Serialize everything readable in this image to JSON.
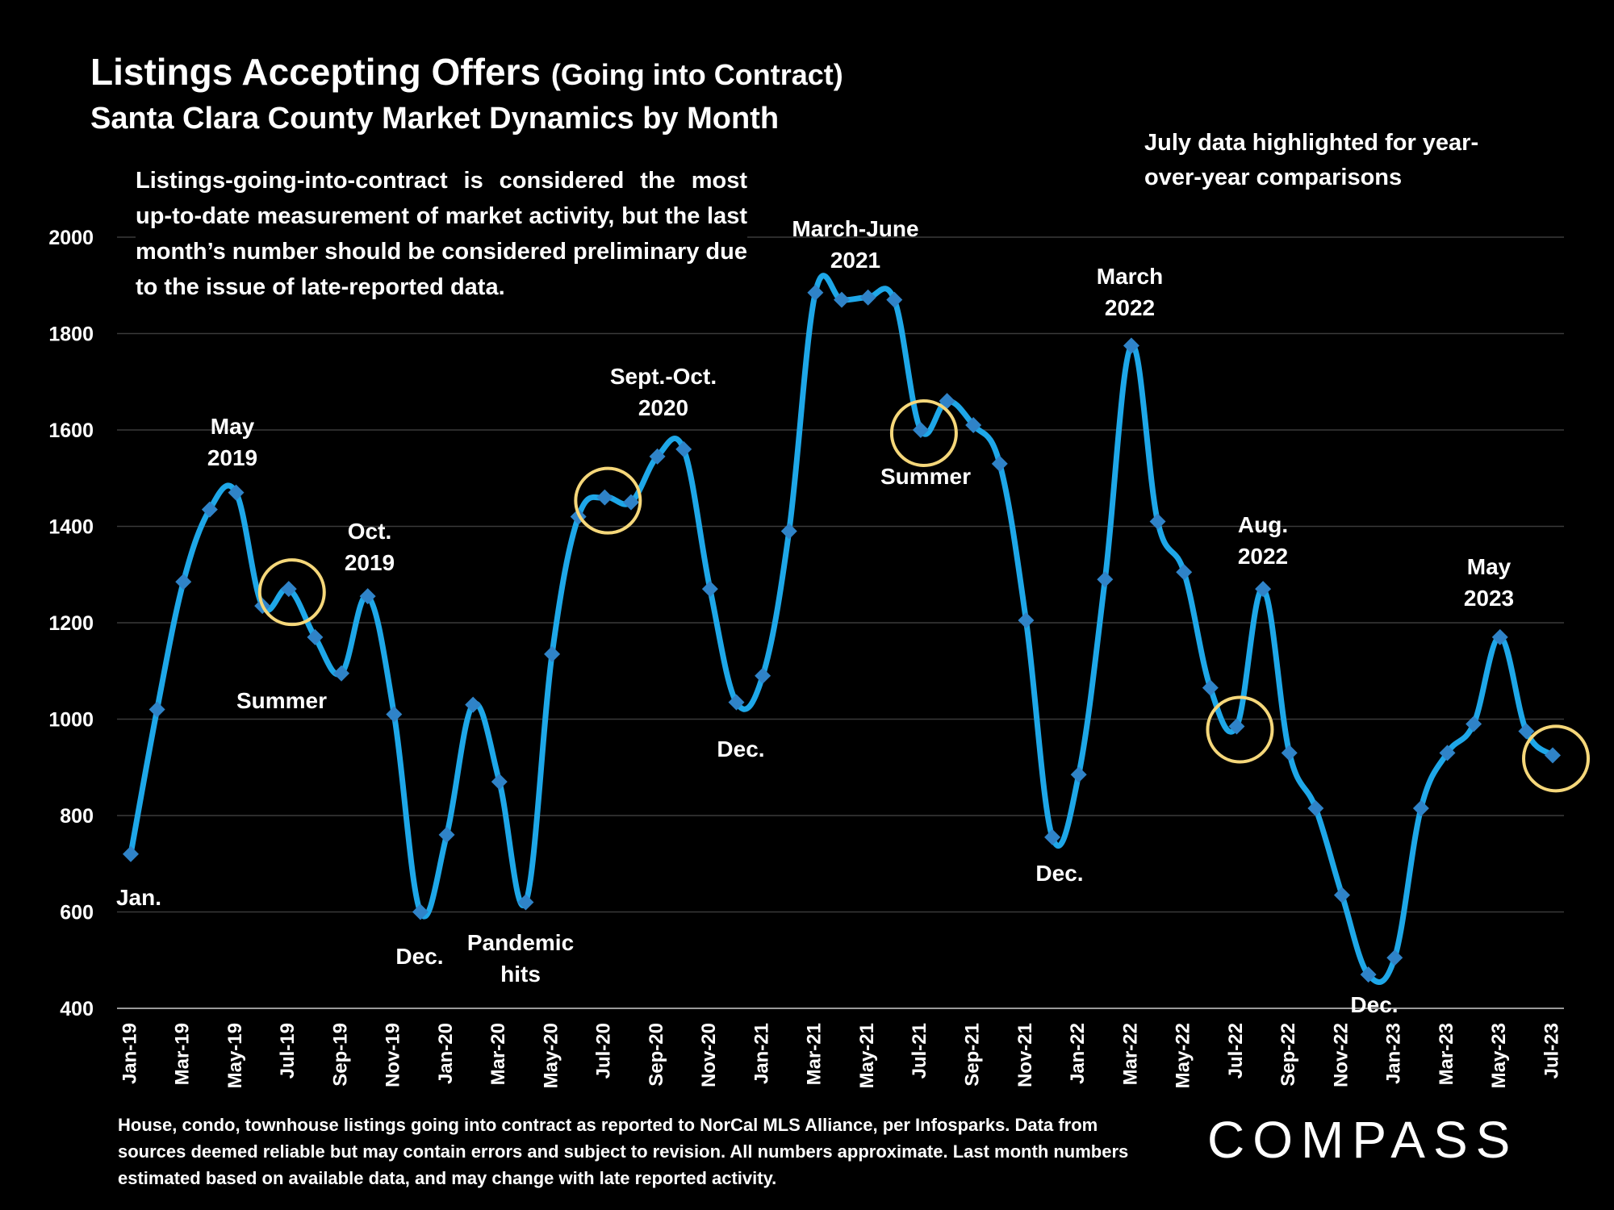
{
  "header": {
    "title": "Listings Accepting Offers",
    "title_suffix": "(Going into Contract)",
    "subtitle": "Santa Clara County Market Dynamics by Month"
  },
  "note": "Listings-going-into-contract is considered the most up-to-date measurement of market activity, but the last month’s number should be considered preliminary due to the issue of late-reported data.",
  "highlight_note": "July data highlighted for year-over-year comparisons",
  "footer": "House, condo, townhouse listings going into contract as reported to NorCal MLS Alliance, per Infosparks. Data from sources deemed reliable but may contain errors and subject to revision. All numbers approximate. Last month numbers estimated based on available data, and may change with late reported activity.",
  "logo": "COMPASS",
  "colors": {
    "line": "#1ea7e8",
    "marker": "#2f83c8",
    "circle": "#f5d77a",
    "grid": "#3a3a3a"
  },
  "chart_data": {
    "type": "line",
    "ylim": [
      400,
      2000
    ],
    "yticks": [
      400,
      600,
      800,
      1000,
      1200,
      1400,
      1600,
      1800,
      2000
    ],
    "x": [
      "Jan-19",
      "Feb-19",
      "Mar-19",
      "Apr-19",
      "May-19",
      "Jun-19",
      "Jul-19",
      "Aug-19",
      "Sep-19",
      "Oct-19",
      "Nov-19",
      "Dec-19",
      "Jan-20",
      "Feb-20",
      "Mar-20",
      "Apr-20",
      "May-20",
      "Jun-20",
      "Jul-20",
      "Aug-20",
      "Sep-20",
      "Oct-20",
      "Nov-20",
      "Dec-20",
      "Jan-21",
      "Feb-21",
      "Mar-21",
      "Apr-21",
      "May-21",
      "Jun-21",
      "Jul-21",
      "Aug-21",
      "Sep-21",
      "Oct-21",
      "Nov-21",
      "Dec-21",
      "Jan-22",
      "Feb-22",
      "Mar-22",
      "Apr-22",
      "May-22",
      "Jun-22",
      "Jul-22",
      "Aug-22",
      "Sep-22",
      "Oct-22",
      "Nov-22",
      "Dec-22",
      "Jan-23",
      "Feb-23",
      "Mar-23",
      "Apr-23",
      "May-23",
      "Jun-23",
      "Jul-23"
    ],
    "xtick_labels": [
      "Jan-19",
      "Mar-19",
      "May-19",
      "Jul-19",
      "Sep-19",
      "Nov-19",
      "Jan-20",
      "Mar-20",
      "May-20",
      "Jul-20",
      "Sep-20",
      "Nov-20",
      "Jan-21",
      "Mar-21",
      "May-21",
      "Jul-21",
      "Sep-21",
      "Nov-21",
      "Jan-22",
      "Mar-22",
      "May-22",
      "Jul-22",
      "Sep-22",
      "Nov-22",
      "Jan-23",
      "Mar-23",
      "May-23",
      "Jul-23"
    ],
    "values": [
      720,
      1020,
      1285,
      1435,
      1470,
      1235,
      1270,
      1170,
      1095,
      1255,
      1010,
      600,
      760,
      1030,
      870,
      620,
      1135,
      1420,
      1460,
      1450,
      1545,
      1560,
      1270,
      1035,
      1090,
      1390,
      1885,
      1870,
      1875,
      1870,
      1600,
      1660,
      1610,
      1530,
      1205,
      755,
      885,
      1290,
      1775,
      1410,
      1305,
      1065,
      985,
      1270,
      930,
      815,
      635,
      470,
      505,
      815,
      930,
      990,
      1170,
      975,
      925
    ],
    "highlighted": [
      "Jul-19",
      "Jul-20",
      "Jul-21",
      "Jul-22",
      "Jul-23"
    ],
    "annotations": [
      {
        "text": [
          "Jan."
        ],
        "x": "Jan-19"
      },
      {
        "text": [
          "May",
          "2019"
        ],
        "x": "May-19"
      },
      {
        "text": [
          "Summer"
        ],
        "x": "Jul-19"
      },
      {
        "text": [
          "Oct.",
          "2019"
        ],
        "x": "Oct-19"
      },
      {
        "text": [
          "Dec."
        ],
        "x": "Dec-19"
      },
      {
        "text": [
          "Pandemic",
          "hits"
        ],
        "x": "Mar-20"
      },
      {
        "text": [
          "Sept.-Oct.",
          "2020"
        ],
        "x": "Sep-20"
      },
      {
        "text": [
          "Dec."
        ],
        "x": "Dec-20"
      },
      {
        "text": [
          "March-June",
          "2021"
        ],
        "x": "Apr-21"
      },
      {
        "text": [
          "Summer"
        ],
        "x": "Jul-21"
      },
      {
        "text": [
          "Dec."
        ],
        "x": "Dec-21"
      },
      {
        "text": [
          "March",
          "2022"
        ],
        "x": "Mar-22"
      },
      {
        "text": [
          "Aug.",
          "2022"
        ],
        "x": "Aug-22"
      },
      {
        "text": [
          "Dec."
        ],
        "x": "Dec-22"
      },
      {
        "text": [
          "May",
          "2023"
        ],
        "x": "May-23"
      }
    ]
  }
}
